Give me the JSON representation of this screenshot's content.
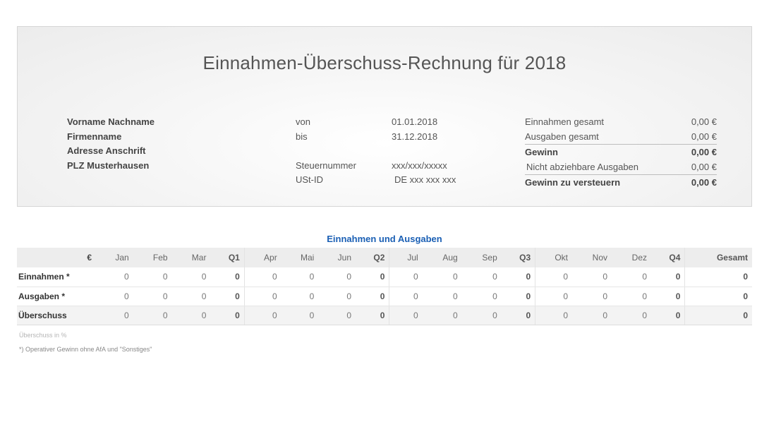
{
  "header": {
    "title": "Einnahmen-Überschuss-Rechnung für 2018",
    "address": [
      "Vorname Nachname",
      "Firmenname",
      "Adresse Anschrift",
      "PLZ Musterhausen"
    ],
    "period_labels": [
      "von",
      "bis",
      "",
      "Steuernummer",
      "USt-ID"
    ],
    "period_values": [
      "01.01.2018",
      "31.12.2018",
      "",
      "xxx/xxx/xxxxx",
      "DE xxx xxx xxx"
    ],
    "summary": [
      {
        "label": "Einnahmen gesamt",
        "value": "0,00 €"
      },
      {
        "label": "Ausgaben gesamt",
        "value": "0,00 €"
      },
      {
        "label": "Gewinn",
        "value": "0,00 €"
      },
      {
        "label": "Nicht abziehbare Ausgaben",
        "value": "0,00 €"
      },
      {
        "label": "Gewinn zu versteuern",
        "value": "0,00 €"
      }
    ]
  },
  "table": {
    "title": "Einnahmen und Ausgaben",
    "currency": "€",
    "columns": [
      "Jan",
      "Feb",
      "Mar",
      "Q1",
      "Apr",
      "Mai",
      "Jun",
      "Q2",
      "Jul",
      "Aug",
      "Sep",
      "Q3",
      "Okt",
      "Nov",
      "Dez",
      "Q4",
      "Gesamt"
    ],
    "rows": [
      {
        "label": "Einnahmen *",
        "values": [
          "0",
          "0",
          "0",
          "0",
          "0",
          "0",
          "0",
          "0",
          "0",
          "0",
          "0",
          "0",
          "0",
          "0",
          "0",
          "0",
          "0"
        ]
      },
      {
        "label": "Ausgaben *",
        "values": [
          "0",
          "0",
          "0",
          "0",
          "0",
          "0",
          "0",
          "0",
          "0",
          "0",
          "0",
          "0",
          "0",
          "0",
          "0",
          "0",
          "0"
        ]
      },
      {
        "label": "Überschuss",
        "values": [
          "0",
          "0",
          "0",
          "0",
          "0",
          "0",
          "0",
          "0",
          "0",
          "0",
          "0",
          "0",
          "0",
          "0",
          "0",
          "0",
          "0"
        ]
      }
    ]
  },
  "notes": {
    "surplus_percent": "Überschuss in %",
    "footnote": "*) Operativer Gewinn ohne AfA und \"Sonstiges\""
  }
}
